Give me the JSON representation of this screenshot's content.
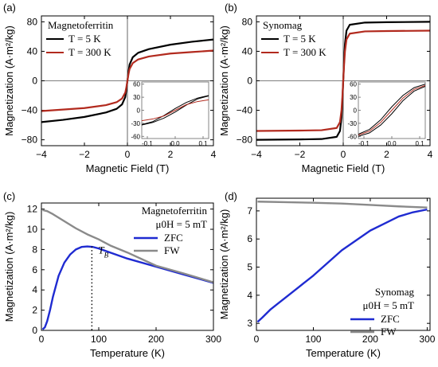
{
  "chart_data": [
    {
      "panel_label": "(a)",
      "type": "line",
      "title": "Magnetoferritin",
      "xlabel": "Magnetic Field (T)",
      "ylabel": "Magnetization (A·m²/kg)",
      "xlim": [
        -4,
        4
      ],
      "ylim": [
        -88,
        88
      ],
      "xticks": [
        -4,
        -2,
        0,
        2,
        4
      ],
      "yticks": [
        -80,
        -40,
        0,
        40,
        80
      ],
      "series": [
        {
          "name": "T = 5 K",
          "color": "#000000",
          "x": [
            -4,
            -3,
            -2,
            -1,
            -0.5,
            -0.25,
            -0.1,
            -0.05,
            0,
            0.05,
            0.1,
            0.25,
            0.5,
            1,
            2,
            3,
            4
          ],
          "y": [
            -56,
            -53,
            -49,
            -43,
            -38,
            -32,
            -22,
            -12,
            0,
            12,
            22,
            32,
            38,
            43,
            49,
            53,
            56
          ]
        },
        {
          "name": "T = 300 K",
          "color": "#b22a1e",
          "x": [
            -4,
            -3,
            -2,
            -1,
            -0.5,
            -0.25,
            -0.1,
            -0.05,
            0,
            0.05,
            0.1,
            0.25,
            0.5,
            1,
            2,
            3,
            4
          ],
          "y": [
            -41,
            -39,
            -37,
            -33,
            -29,
            -24,
            -16,
            -9,
            0,
            9,
            16,
            24,
            29,
            33,
            37,
            39,
            41
          ]
        }
      ],
      "inset": {
        "xlim": [
          -0.12,
          0.12
        ],
        "ylim": [
          -65,
          65
        ],
        "xticks": [
          -0.1,
          0.0,
          0.1
        ],
        "yticks": [
          -60,
          -30,
          0,
          30,
          60
        ],
        "xtick_labels": [
          "-0.1",
          "0.0",
          "0.1"
        ],
        "series": [
          {
            "name": "T = 5 K up",
            "color": "#000000",
            "x": [
              -0.12,
              -0.08,
              -0.04,
              0,
              0.04,
              0.08,
              0.12
            ],
            "y": [
              -34,
              -28,
              -18,
              -4,
              12,
              26,
              33
            ]
          },
          {
            "name": "T = 5 K down",
            "color": "#000000",
            "x": [
              -0.12,
              -0.08,
              -0.04,
              0,
              0.04,
              0.08,
              0.12
            ],
            "y": [
              -33,
              -26,
              -12,
              4,
              18,
              28,
              34
            ]
          },
          {
            "name": "T = 300 K",
            "color": "#b22a1e",
            "x": [
              -0.12,
              -0.08,
              -0.04,
              0,
              0.04,
              0.08,
              0.12
            ],
            "y": [
              -24,
              -20,
              -13,
              0,
              13,
              20,
              24
            ]
          }
        ]
      }
    },
    {
      "panel_label": "(b)",
      "type": "line",
      "title": "Synomag",
      "xlabel": "Magnetic Field (T)",
      "ylabel": "Magnetization (A·m²/kg)",
      "xlim": [
        -4,
        4
      ],
      "ylim": [
        -88,
        88
      ],
      "xticks": [
        -4,
        -2,
        0,
        2,
        4
      ],
      "yticks": [
        -80,
        -40,
        0,
        40,
        80
      ],
      "series": [
        {
          "name": "T = 5 K",
          "color": "#000000",
          "x": [
            -4,
            -2,
            -1,
            -0.3,
            -0.15,
            -0.08,
            -0.04,
            0,
            0.04,
            0.08,
            0.15,
            0.3,
            1,
            2,
            4
          ],
          "y": [
            -80,
            -79.5,
            -79,
            -76,
            -68,
            -50,
            -28,
            0,
            28,
            50,
            68,
            76,
            79,
            79.5,
            80
          ]
        },
        {
          "name": "T = 300 K",
          "color": "#b22a1e",
          "x": [
            -4,
            -2,
            -1,
            -0.3,
            -0.15,
            -0.08,
            -0.04,
            0,
            0.04,
            0.08,
            0.15,
            0.3,
            1,
            2,
            4
          ],
          "y": [
            -68,
            -67.5,
            -67,
            -64,
            -56,
            -40,
            -22,
            0,
            22,
            40,
            56,
            64,
            67,
            67.5,
            68
          ]
        }
      ],
      "inset": {
        "xlim": [
          -0.12,
          0.12
        ],
        "ylim": [
          -65,
          65
        ],
        "xticks": [
          -0.1,
          0.0,
          0.1
        ],
        "yticks": [
          -60,
          -30,
          0,
          30,
          60
        ],
        "xtick_labels": [
          "-0.1",
          "0.0",
          "0.1"
        ],
        "series": [
          {
            "name": "T = 5 K up",
            "color": "#000000",
            "x": [
              -0.12,
              -0.08,
              -0.04,
              0,
              0.04,
              0.08,
              0.12
            ],
            "y": [
              -60,
              -52,
              -34,
              -8,
              22,
              44,
              55
            ]
          },
          {
            "name": "T = 5 K down",
            "color": "#000000",
            "x": [
              -0.12,
              -0.08,
              -0.04,
              0,
              0.04,
              0.08,
              0.12
            ],
            "y": [
              -55,
              -44,
              -22,
              8,
              34,
              52,
              60
            ]
          },
          {
            "name": "T = 300 K",
            "color": "#b22a1e",
            "x": [
              -0.12,
              -0.08,
              -0.04,
              0,
              0.04,
              0.08,
              0.12
            ],
            "y": [
              -57,
              -48,
              -28,
              0,
              28,
              48,
              57
            ]
          }
        ]
      }
    },
    {
      "panel_label": "(c)",
      "type": "line",
      "title": "Magnetoferritin",
      "field": "μ0H = 5 mT",
      "xlabel": "Temperature (K)",
      "ylabel": "Magnetization (A·m²/kg)",
      "xlim": [
        0,
        300
      ],
      "ylim": [
        0,
        12.6
      ],
      "xticks": [
        0,
        100,
        200,
        300
      ],
      "yticks": [
        0,
        2,
        4,
        6,
        8,
        10,
        12
      ],
      "annotation": {
        "text": "T",
        "sub": "B",
        "x": 88
      },
      "series": [
        {
          "name": "ZFC",
          "color": "#1f2bd1",
          "x": [
            2,
            6,
            10,
            15,
            20,
            30,
            40,
            50,
            60,
            70,
            80,
            90,
            100,
            120,
            150,
            200,
            250,
            300
          ],
          "y": [
            0.1,
            0.3,
            0.9,
            2.0,
            3.3,
            5.4,
            6.7,
            7.5,
            8.0,
            8.25,
            8.3,
            8.25,
            8.1,
            7.7,
            7.1,
            6.3,
            5.5,
            4.7
          ]
        },
        {
          "name": "FW",
          "color": "#8a8a8a",
          "x": [
            2,
            10,
            20,
            40,
            60,
            80,
            100,
            120,
            150,
            200,
            250,
            300
          ],
          "y": [
            11.9,
            11.8,
            11.5,
            10.8,
            10.1,
            9.5,
            9.0,
            8.4,
            7.7,
            6.4,
            5.6,
            4.75
          ]
        }
      ]
    },
    {
      "panel_label": "(d)",
      "type": "line",
      "title": "Synomag",
      "field": "μ0H = 5 mT",
      "xlabel": "Temperature (K)",
      "ylabel": "Magnetization (A·m²/kg)",
      "xlim": [
        0,
        305
      ],
      "ylim": [
        2.75,
        7.45
      ],
      "xticks": [
        0,
        100,
        200,
        300
      ],
      "yticks": [
        3,
        4,
        5,
        6,
        7
      ],
      "series": [
        {
          "name": "ZFC",
          "color": "#1f2bd1",
          "x": [
            2,
            10,
            25,
            50,
            75,
            100,
            125,
            150,
            175,
            200,
            225,
            250,
            275,
            300
          ],
          "y": [
            3.05,
            3.2,
            3.5,
            3.9,
            4.3,
            4.7,
            5.15,
            5.6,
            5.95,
            6.3,
            6.55,
            6.8,
            6.95,
            7.05
          ]
        },
        {
          "name": "FW",
          "color": "#8a8a8a",
          "x": [
            2,
            50,
            100,
            150,
            200,
            250,
            300
          ],
          "y": [
            7.33,
            7.31,
            7.29,
            7.26,
            7.21,
            7.16,
            7.12
          ]
        }
      ]
    }
  ]
}
